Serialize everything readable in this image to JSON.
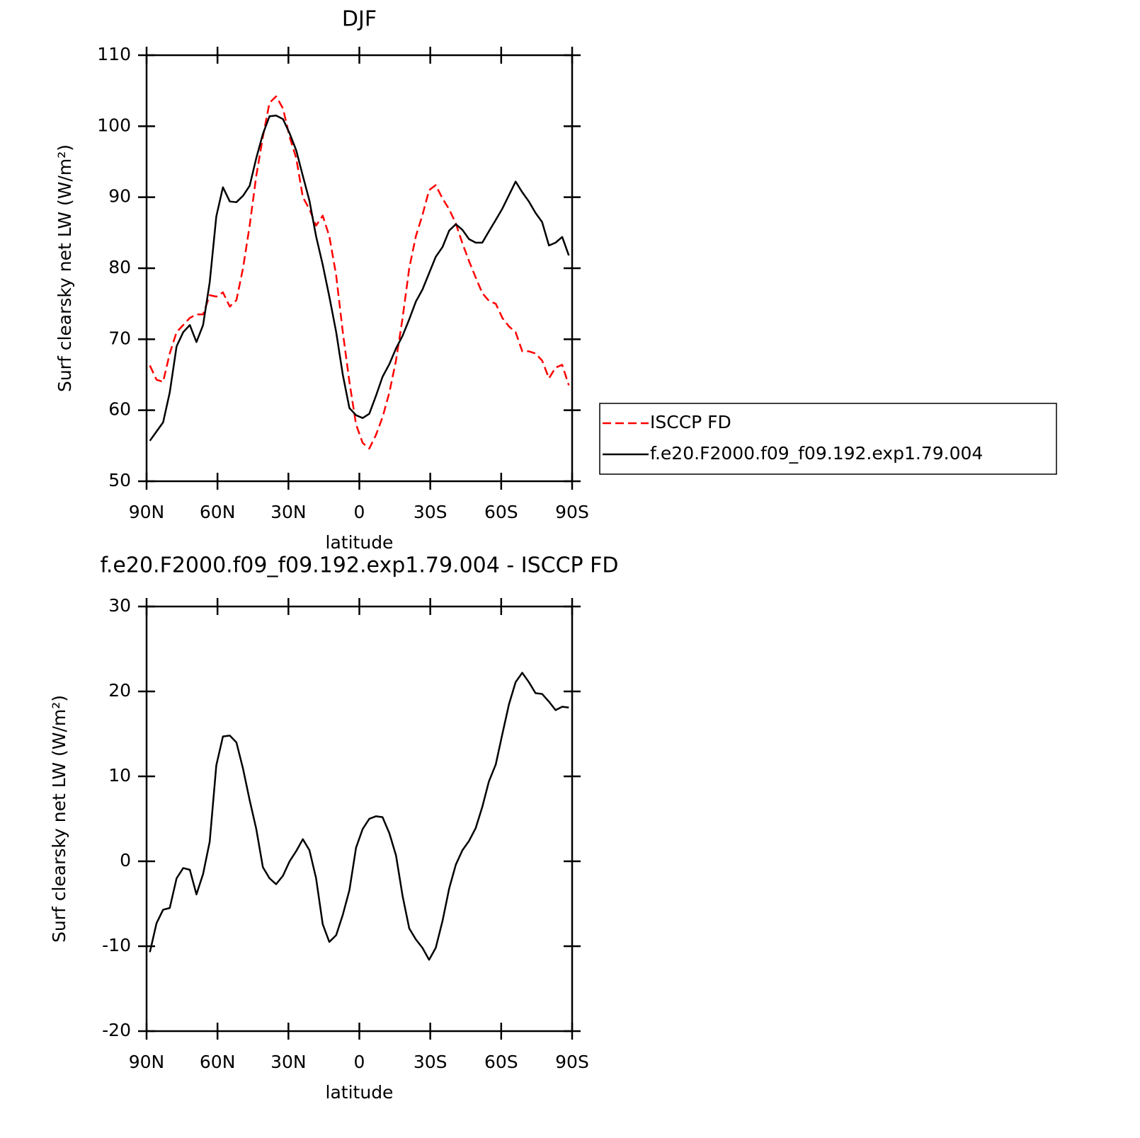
{
  "chart_data": [
    {
      "type": "line",
      "title": "DJF",
      "xlabel": "latitude",
      "ylabel": "Surf clearsky net LW (W/m²)",
      "xlim": [
        90,
        -90
      ],
      "ylim": [
        50,
        110
      ],
      "xticks": [
        {
          "value": 90,
          "label": "90N"
        },
        {
          "value": 60,
          "label": "60N"
        },
        {
          "value": 30,
          "label": "30N"
        },
        0,
        {
          "value": -30,
          "label": "30S"
        },
        {
          "value": -60,
          "label": "60S"
        },
        {
          "value": -90,
          "label": "90S"
        }
      ],
      "yticks": [
        50,
        60,
        70,
        80,
        90,
        100,
        110
      ],
      "legend": "right",
      "x": [
        88.6,
        85.8,
        83,
        80.2,
        77.3,
        74.5,
        71.7,
        68.9,
        66.1,
        63.3,
        60.5,
        57.7,
        54.8,
        52,
        49.2,
        46.4,
        43.6,
        40.8,
        38,
        35.2,
        32.3,
        29.5,
        26.7,
        23.9,
        21.1,
        18.3,
        15.5,
        12.7,
        9.8,
        7,
        4.2,
        1.4,
        -1.4,
        -4.2,
        -7,
        -9.8,
        -12.7,
        -15.5,
        -18.3,
        -21.1,
        -23.9,
        -26.7,
        -29.5,
        -32.3,
        -35.2,
        -38,
        -40.8,
        -43.6,
        -46.4,
        -49.2,
        -52,
        -54.8,
        -57.7,
        -60.5,
        -63.3,
        -66.1,
        -68.9,
        -71.7,
        -74.5,
        -77.3,
        -80.2,
        -83,
        -85.8,
        -88.6
      ],
      "series": [
        {
          "name": "ISCCP FD",
          "color": "#ff0000",
          "linestyle": "dashed",
          "values": [
            66.3,
            64.3,
            64,
            68,
            71,
            72,
            73,
            73.5,
            73.5,
            76.2,
            76,
            76.6,
            74.6,
            75.5,
            80,
            86,
            93,
            98.5,
            103.3,
            104.2,
            102.5,
            98.5,
            95.5,
            90,
            88.3,
            86,
            87.4,
            84.5,
            79,
            71,
            64,
            58,
            55.4,
            54.6,
            56.5,
            59,
            62.5,
            67,
            73,
            80,
            84.5,
            87.5,
            91,
            91.7,
            89.8,
            88.3,
            86.3,
            83.5,
            81,
            78.7,
            76.5,
            75.4,
            75,
            73,
            71.8,
            71,
            68.3,
            68.3,
            68,
            67,
            64.5,
            66,
            66.4,
            63.5
          ]
        },
        {
          "name": "f.e20.F2000.f09_f09.192.exp1.79.004",
          "color": "#000000",
          "linestyle": "solid",
          "values": [
            55.7,
            57,
            58.3,
            62.5,
            69,
            71,
            72,
            69.6,
            72,
            78,
            87.3,
            91.4,
            89.4,
            89.3,
            90.2,
            91.6,
            95.5,
            98.9,
            101.4,
            101.5,
            101,
            99,
            96.6,
            93,
            89.5,
            84.5,
            80.5,
            76,
            71,
            65,
            60.3,
            59.3,
            58.9,
            59.5,
            62,
            64.7,
            66.5,
            68.7,
            70.5,
            72.8,
            75.3,
            77,
            79.3,
            81.6,
            83,
            85.3,
            86.2,
            85.4,
            84.1,
            83.6,
            83.6,
            85.2,
            86.8,
            88.4,
            90.3,
            92.2,
            90.7,
            89.4,
            87.8,
            86.5,
            83.2,
            83.6,
            84.4,
            81.8
          ]
        }
      ]
    },
    {
      "type": "line",
      "title": "f.e20.F2000.f09_f09.192.exp1.79.004 - ISCCP FD",
      "xlabel": "latitude",
      "ylabel": "Surf clearsky net LW (W/m²)",
      "xlim": [
        90,
        -90
      ],
      "ylim": [
        -20,
        30
      ],
      "xticks": [
        {
          "value": 90,
          "label": "90N"
        },
        {
          "value": 60,
          "label": "60N"
        },
        {
          "value": 30,
          "label": "30N"
        },
        0,
        {
          "value": -30,
          "label": "30S"
        },
        {
          "value": -60,
          "label": "60S"
        },
        {
          "value": -90,
          "label": "90S"
        }
      ],
      "yticks": [
        -20,
        -10,
        0,
        10,
        20,
        30
      ],
      "x": [
        88.6,
        85.8,
        83,
        80.2,
        77.3,
        74.5,
        71.7,
        68.9,
        66.1,
        63.3,
        60.5,
        57.7,
        54.8,
        52,
        49.2,
        46.4,
        43.6,
        40.8,
        38,
        35.2,
        32.3,
        29.5,
        26.7,
        23.9,
        21.1,
        18.3,
        15.5,
        12.7,
        9.8,
        7,
        4.2,
        1.4,
        -1.4,
        -4.2,
        -7,
        -9.8,
        -12.7,
        -15.5,
        -18.3,
        -21.1,
        -23.9,
        -26.7,
        -29.5,
        -32.3,
        -35.2,
        -38,
        -40.8,
        -43.6,
        -46.4,
        -49.2,
        -52,
        -54.8,
        -57.7,
        -60.5,
        -63.3,
        -66.1,
        -68.9,
        -71.7,
        -74.5,
        -77.3,
        -80.2,
        -83,
        -85.8,
        -88.6
      ],
      "series": [
        {
          "color": "#000000",
          "linestyle": "solid",
          "values": [
            -10.7,
            -7.3,
            -5.7,
            -5.5,
            -2,
            -0.8,
            -1,
            -3.9,
            -1.5,
            2.3,
            11.3,
            14.7,
            14.8,
            14,
            10.9,
            7.2,
            3.8,
            -0.7,
            -2,
            -2.7,
            -1.7,
            0,
            1.2,
            2.6,
            1.3,
            -2,
            -7.4,
            -9.5,
            -8.7,
            -6.3,
            -3.4,
            1.6,
            3.8,
            5,
            5.3,
            5.2,
            3.3,
            0.7,
            -4.1,
            -7.9,
            -9.2,
            -10.2,
            -11.6,
            -10.2,
            -7,
            -3.2,
            -0.4,
            1.3,
            2.4,
            3.9,
            6.4,
            9.4,
            11.4,
            15,
            18.5,
            21.1,
            22.2,
            21.1,
            19.8,
            19.7,
            18.8,
            17.8,
            18.2,
            18.1
          ]
        }
      ]
    }
  ]
}
